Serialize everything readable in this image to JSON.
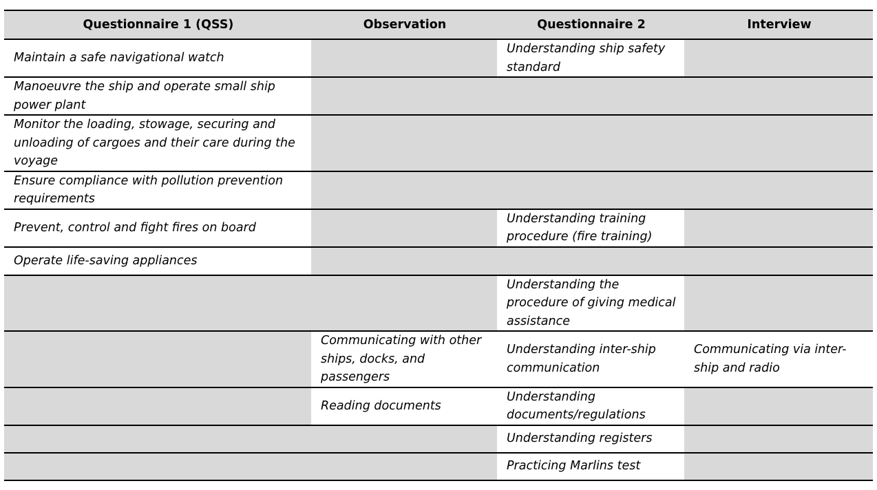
{
  "table": {
    "headers": [
      "Questionnaire 1 (QSS)",
      "Observation",
      "Questionnaire 2",
      "Interview"
    ],
    "rows": [
      [
        "Maintain a safe navigational watch",
        "",
        "Understanding ship safety standard",
        ""
      ],
      [
        "Manoeuvre the ship and operate small ship power plant",
        "",
        "",
        ""
      ],
      [
        "Monitor the loading, stowage, securing and unloading of cargoes and their care during the voyage",
        "",
        "",
        ""
      ],
      [
        "Ensure compliance with pollution prevention requirements",
        "",
        "",
        ""
      ],
      [
        "Prevent, control and fight fires on board",
        "",
        "Understanding training procedure (fire training)",
        ""
      ],
      [
        "Operate life-saving appliances",
        "",
        "",
        ""
      ],
      [
        "",
        "",
        "Understanding the procedure of giving medical assistance",
        ""
      ],
      [
        "",
        "Communicating with other ships, docks, and passengers",
        "Understanding inter-ship communication",
        "Communicating via inter-ship and radio"
      ],
      [
        "",
        "Reading documents",
        "Understanding documents/regulations",
        ""
      ],
      [
        "",
        "",
        "Understanding registers",
        ""
      ],
      [
        "",
        "",
        "Practicing Marlins test",
        ""
      ]
    ],
    "empty_cell_color": "#d9d9d9",
    "header_color": "#d9d9d9"
  }
}
